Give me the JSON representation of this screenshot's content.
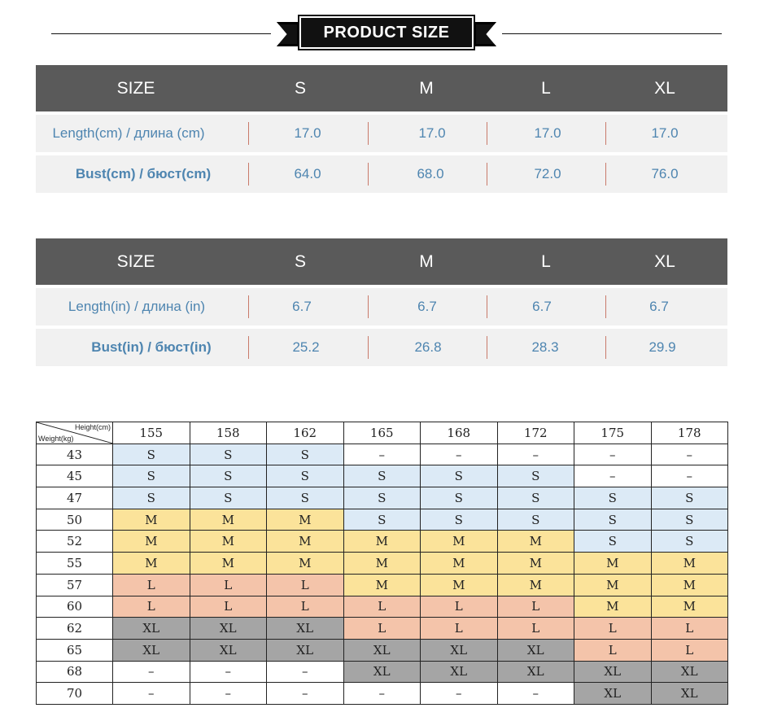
{
  "banner": {
    "title": "PRODUCT SIZE"
  },
  "cm_table": {
    "header": [
      "SIZE",
      "S",
      "M",
      "L",
      "XL"
    ],
    "rows": [
      {
        "label": "Length(cm) / длина (cm)",
        "values": [
          "17.0",
          "17.0",
          "17.0",
          "17.0"
        ]
      },
      {
        "label": "Bust(cm) / бюст(cm)",
        "values": [
          "64.0",
          "68.0",
          "72.0",
          "76.0"
        ]
      }
    ]
  },
  "in_table": {
    "header": [
      "SIZE",
      "S",
      "M",
      "L",
      "XL"
    ],
    "rows": [
      {
        "label": "Length(in) / длина (in)",
        "values": [
          "6.7",
          "6.7",
          "6.7",
          "6.7"
        ]
      },
      {
        "label": "Bust(in) / бюст(in)",
        "values": [
          "25.2",
          "26.8",
          "28.3",
          "29.9"
        ]
      }
    ]
  },
  "grid": {
    "corner_height": "Height(cm)",
    "corner_weight": "Weight(kg)",
    "heights": [
      "155",
      "158",
      "162",
      "165",
      "168",
      "172",
      "175",
      "178"
    ],
    "rows": [
      {
        "weight": "43",
        "sizes": [
          "S",
          "S",
          "S",
          "–",
          "–",
          "–",
          "–",
          "–"
        ]
      },
      {
        "weight": "45",
        "sizes": [
          "S",
          "S",
          "S",
          "S",
          "S",
          "S",
          "–",
          "–"
        ]
      },
      {
        "weight": "47",
        "sizes": [
          "S",
          "S",
          "S",
          "S",
          "S",
          "S",
          "S",
          "S"
        ]
      },
      {
        "weight": "50",
        "sizes": [
          "M",
          "M",
          "M",
          "S",
          "S",
          "S",
          "S",
          "S"
        ]
      },
      {
        "weight": "52",
        "sizes": [
          "M",
          "M",
          "M",
          "M",
          "M",
          "M",
          "S",
          "S"
        ]
      },
      {
        "weight": "55",
        "sizes": [
          "M",
          "M",
          "M",
          "M",
          "M",
          "M",
          "M",
          "M"
        ]
      },
      {
        "weight": "57",
        "sizes": [
          "L",
          "L",
          "L",
          "M",
          "M",
          "M",
          "M",
          "M"
        ]
      },
      {
        "weight": "60",
        "sizes": [
          "L",
          "L",
          "L",
          "L",
          "L",
          "L",
          "M",
          "M"
        ]
      },
      {
        "weight": "62",
        "sizes": [
          "XL",
          "XL",
          "XL",
          "L",
          "L",
          "L",
          "L",
          "L"
        ]
      },
      {
        "weight": "65",
        "sizes": [
          "XL",
          "XL",
          "XL",
          "XL",
          "XL",
          "XL",
          "L",
          "L"
        ]
      },
      {
        "weight": "68",
        "sizes": [
          "–",
          "–",
          "–",
          "XL",
          "XL",
          "XL",
          "XL",
          "XL"
        ]
      },
      {
        "weight": "70",
        "sizes": [
          "–",
          "–",
          "–",
          "–",
          "–",
          "–",
          "XL",
          "XL"
        ]
      }
    ]
  },
  "colors": {
    "S": "#dceaf6",
    "M": "#fbe39a",
    "L": "#f4c4aa",
    "XL": "#a5a5a5",
    "header_bg": "#5a5a5a",
    "row_text": "#4e85b0"
  }
}
